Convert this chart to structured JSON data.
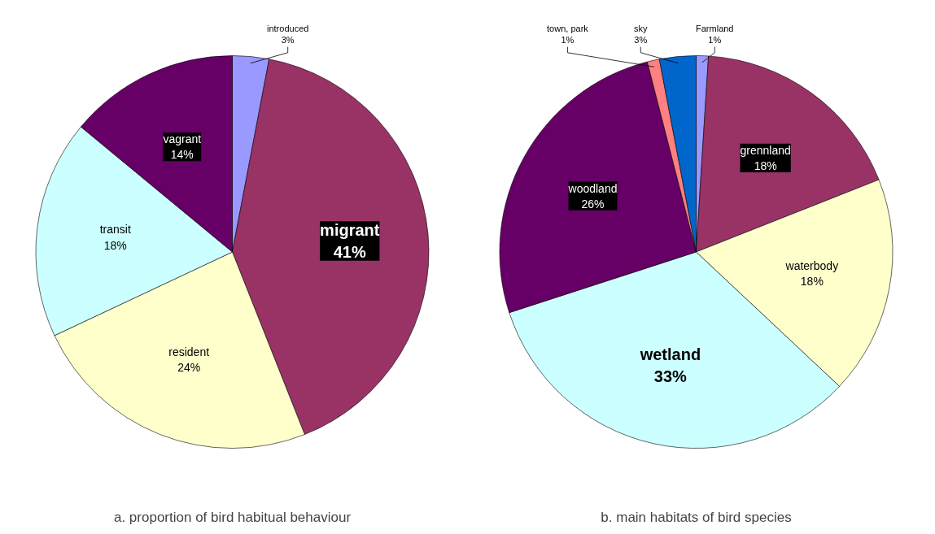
{
  "chart_data": [
    {
      "type": "pie",
      "title": "a. proportion of bird habitual behaviour",
      "categories": [
        "introduced",
        "migrant",
        "resident",
        "transit",
        "vagrant"
      ],
      "values": [
        3,
        41,
        24,
        18,
        14
      ],
      "colors": [
        "#9999ff",
        "#993366",
        "#ffffcc",
        "#ccffff",
        "#660066"
      ],
      "value_labels": [
        "3%",
        "41%",
        "24%",
        "18%",
        "14%"
      ]
    },
    {
      "type": "pie",
      "title": "b. main habitats of bird species",
      "categories": [
        "Farmland",
        "grennland",
        "waterbody",
        "wetland",
        "woodland",
        "town, park",
        "sky"
      ],
      "values": [
        1,
        18,
        18,
        33,
        26,
        1,
        3
      ],
      "colors": [
        "#9999ff",
        "#993366",
        "#ffffcc",
        "#ccffff",
        "#660066",
        "#ff8080",
        "#0066cc"
      ],
      "value_labels": [
        "1%",
        "18%",
        "18%",
        "33%",
        "26%",
        "1%",
        "3%"
      ]
    }
  ]
}
